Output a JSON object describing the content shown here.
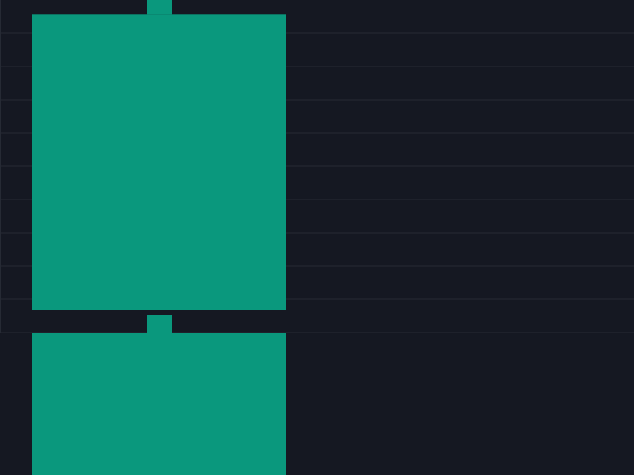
{
  "theme": {
    "background": "#151822",
    "grid": "#262a34",
    "candle_up": "#0a987d"
  },
  "chart_data": {
    "type": "candlestick",
    "title": "",
    "xlabel": "",
    "ylabel": "",
    "grid": true,
    "visible_window_note": "zoomed crop",
    "candles": [
      {
        "open": 0.35,
        "high": 10.4,
        "close": 9.93
      },
      {
        "open": -4.35,
        "high": -0.45,
        "close": -0.45
      }
    ]
  }
}
